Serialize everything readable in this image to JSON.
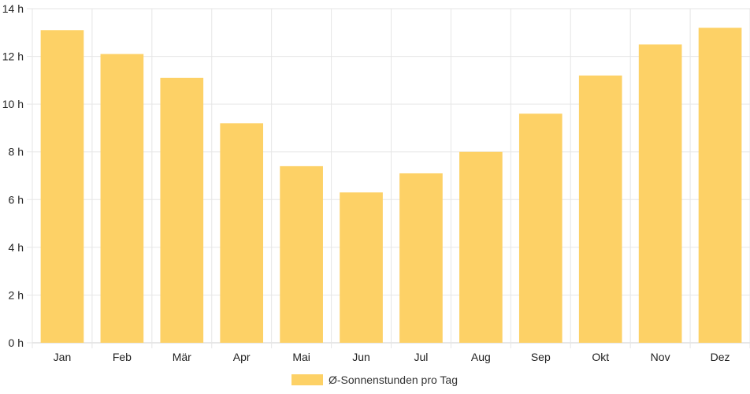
{
  "chart_data": {
    "type": "bar",
    "categories": [
      "Jan",
      "Feb",
      "Mär",
      "Apr",
      "Mai",
      "Jun",
      "Jul",
      "Aug",
      "Sep",
      "Okt",
      "Nov",
      "Dez"
    ],
    "series": [
      {
        "name": "Ø-Sonnenstunden pro Tag",
        "values": [
          13.1,
          12.1,
          11.1,
          9.2,
          7.4,
          6.3,
          7.1,
          8.0,
          9.6,
          11.2,
          12.5,
          13.2
        ],
        "color": "#fdd166"
      }
    ],
    "y_ticks": [
      "0 h",
      "2 h",
      "4 h",
      "6 h",
      "8 h",
      "10 h",
      "12 h",
      "14 h"
    ],
    "ylim": [
      0,
      14
    ],
    "ystep": 2,
    "grid": true,
    "legend_position": "bottom"
  }
}
